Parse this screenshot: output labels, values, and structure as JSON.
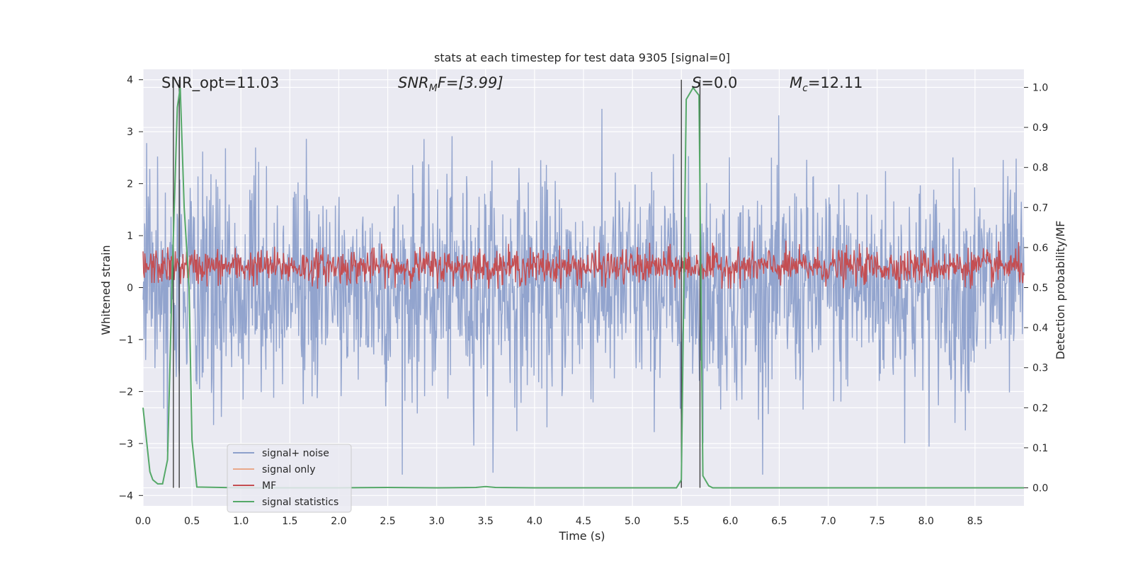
{
  "chart_data": {
    "type": "line",
    "title": "stats at each timestep for test data 9305 [signal=0]",
    "xlabel": "Time (s)",
    "ylabel": "Whitened strain",
    "y2label": "Detection probability/MF",
    "xlim": [
      0.0,
      9.0
    ],
    "ylim": [
      -4.2,
      4.2
    ],
    "y2lim": [
      -0.045,
      1.045
    ],
    "xticks": [
      "0.0",
      "0.5",
      "1.0",
      "1.5",
      "2.0",
      "2.5",
      "3.0",
      "3.5",
      "4.0",
      "4.5",
      "5.0",
      "5.5",
      "6.0",
      "6.5",
      "7.0",
      "7.5",
      "8.0",
      "8.5"
    ],
    "yticks": [
      "4",
      "3",
      "2",
      "1",
      "0",
      "−1",
      "−2",
      "−3",
      "−4"
    ],
    "y2ticks": [
      "1.0",
      "0.9",
      "0.8",
      "0.7",
      "0.6",
      "0.5",
      "0.4",
      "0.3",
      "0.2",
      "0.1",
      "0.0"
    ],
    "grid": true,
    "legend_position": "lower-left",
    "annotations": {
      "snr_opt": "SNR_opt=11.03",
      "snr_mf_main": "SNR",
      "snr_mf_sub": "M",
      "snr_mf_rest": "F=[3.99]",
      "s_main": "S",
      "s_rest": "=0.0",
      "mc_main": "M",
      "mc_sub": "c",
      "mc_rest": "=12.11"
    },
    "vertical_markers_s": [
      0.31,
      0.37,
      5.5,
      5.69
    ],
    "series": [
      {
        "name": "signal+ noise",
        "color": "#8da0cb",
        "axis": "left",
        "note_values": "dense noise, roughly symmetric, typical envelope -1.6 to 1.6, peaks near +/-3.4"
      },
      {
        "name": "signal only",
        "color": "#e9a88a",
        "axis": "left",
        "values": []
      },
      {
        "name": "MF",
        "color": "#c44e52",
        "axis": "right",
        "note_values": "noisy band between about 0.50 and 0.62"
      },
      {
        "name": "signal statistics",
        "color": "#55a868",
        "axis": "right",
        "x": [
          0.0,
          0.07,
          0.1,
          0.15,
          0.2,
          0.25,
          0.3,
          0.35,
          0.38,
          0.42,
          0.47,
          0.5,
          0.55,
          1.0,
          2.0,
          2.5,
          3.0,
          3.4,
          3.5,
          3.6,
          4.0,
          5.0,
          5.45,
          5.5,
          5.55,
          5.62,
          5.68,
          5.72,
          5.78,
          5.82,
          6.0,
          7.0,
          8.0,
          9.0
        ],
        "y": [
          0.2,
          0.04,
          0.02,
          0.01,
          0.01,
          0.07,
          0.55,
          0.95,
          0.999,
          0.7,
          0.5,
          0.12,
          0.002,
          0.0,
          0.0,
          0.001,
          0.0,
          0.001,
          0.003,
          0.001,
          0.0,
          0.0,
          0.0,
          0.02,
          0.97,
          0.999,
          0.98,
          0.03,
          0.005,
          0.0,
          0.0,
          0.0,
          0.0,
          0.0
        ]
      }
    ]
  }
}
